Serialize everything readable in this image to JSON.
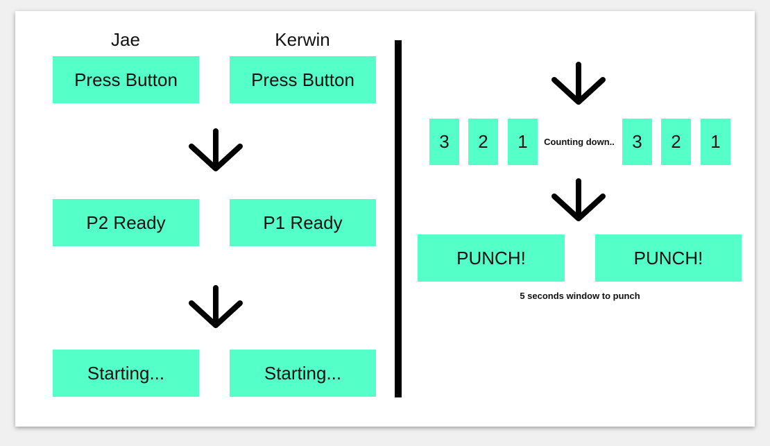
{
  "colors": {
    "box": "#55FFC8",
    "arrow": "#000000",
    "divider": "#000000",
    "background": "#FFFFFF"
  },
  "left": {
    "players": [
      "Jae",
      "Kerwin"
    ],
    "step1": [
      "Press Button",
      "Press Button"
    ],
    "step2": [
      "P2 Ready",
      "P1 Ready"
    ],
    "step3": [
      "Starting...",
      "Starting..."
    ]
  },
  "right": {
    "countdown_left": [
      "3",
      "2",
      "1"
    ],
    "countdown_label": "Counting down..",
    "countdown_right": [
      "3",
      "2",
      "1"
    ],
    "punch": [
      "PUNCH!",
      "PUNCH!"
    ],
    "punch_note": "5 seconds window to punch"
  },
  "icons": {
    "arrow": "arrow-down-icon"
  }
}
